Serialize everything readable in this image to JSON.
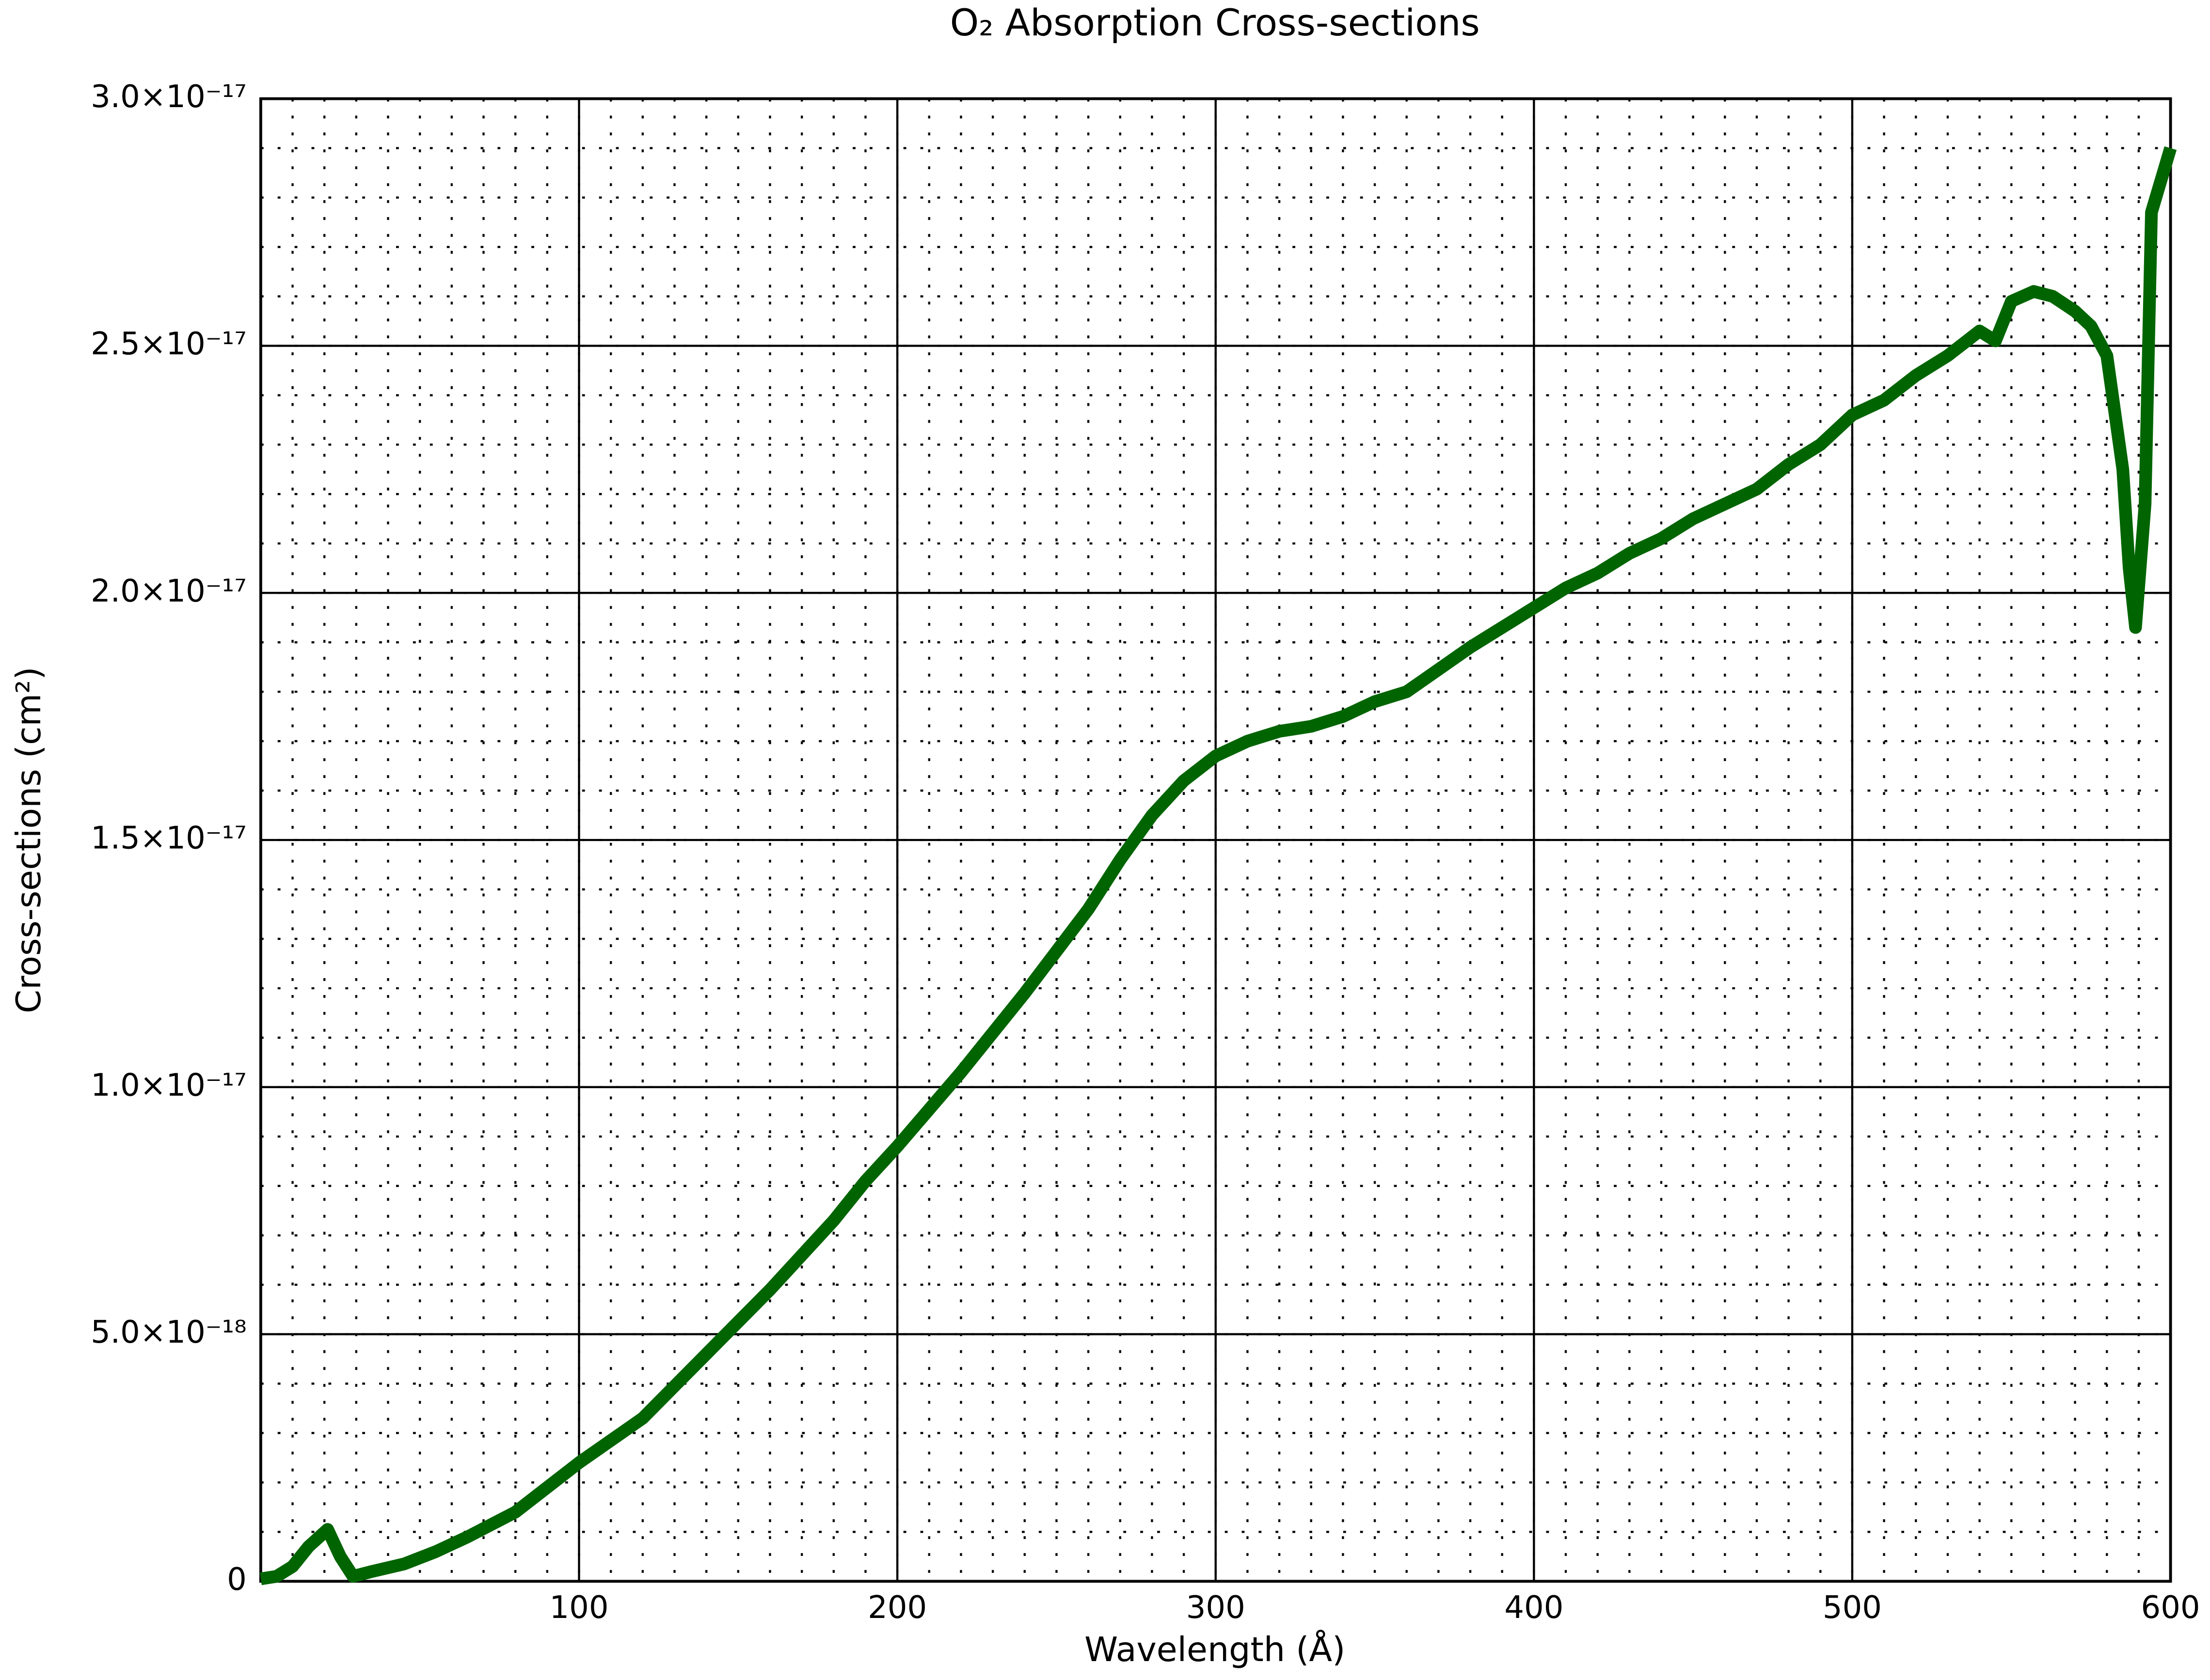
{
  "chart_data": {
    "type": "line",
    "title": "O₂ Absorption Cross-sections",
    "xlabel": "Wavelength (Å)",
    "ylabel": "Cross-sections (cm²)",
    "xlim": [
      0,
      600
    ],
    "ylim": [
      0,
      3e-17
    ],
    "xticks": [
      100,
      200,
      300,
      400,
      500,
      600
    ],
    "yticks": [
      0,
      {
        "value": 5e-18,
        "label": "5.0×10⁻¹⁸"
      },
      {
        "value": 1e-17,
        "label": "1.0×10⁻¹⁷"
      },
      {
        "value": 1.5e-17,
        "label": "1.5×10⁻¹⁷"
      },
      {
        "value": 2e-17,
        "label": "2.0×10⁻¹⁷"
      },
      {
        "value": 2.5e-17,
        "label": "2.5×10⁻¹⁷"
      },
      {
        "value": 3e-17,
        "label": "3.0×10⁻¹⁷"
      }
    ],
    "grid": true,
    "minor_grid": true,
    "x": [
      0,
      5,
      10,
      15,
      21,
      25,
      29,
      35,
      45,
      55,
      65,
      80,
      90,
      100,
      120,
      140,
      160,
      180,
      190,
      200,
      220,
      240,
      260,
      270,
      280,
      290,
      300,
      310,
      320,
      330,
      340,
      350,
      360,
      380,
      400,
      410,
      420,
      430,
      440,
      450,
      470,
      480,
      490,
      500,
      510,
      520,
      530,
      540,
      545,
      550,
      557,
      563,
      570,
      575,
      580,
      585,
      587,
      589,
      592,
      594,
      600
    ],
    "series": [
      {
        "color": "#006400",
        "values": [
          5e-20,
          1e-19,
          3e-19,
          7e-19,
          1.05e-18,
          5e-19,
          1e-19,
          2e-19,
          3.5e-19,
          6e-19,
          9e-19,
          1.4e-18,
          1.9e-18,
          2.4e-18,
          3.3e-18,
          4.6e-18,
          5.9e-18,
          7.3e-18,
          8.1e-18,
          8.8e-18,
          1.03e-17,
          1.19e-17,
          1.36e-17,
          1.46e-17,
          1.55e-17,
          1.62e-17,
          1.67e-17,
          1.7e-17,
          1.72e-17,
          1.73e-17,
          1.75e-17,
          1.78e-17,
          1.8e-17,
          1.89e-17,
          1.97e-17,
          2.01e-17,
          2.04e-17,
          2.08e-17,
          2.11e-17,
          2.15e-17,
          2.21e-17,
          2.26e-17,
          2.3e-17,
          2.36e-17,
          2.39e-17,
          2.44e-17,
          2.48e-17,
          2.53e-17,
          2.51e-17,
          2.59e-17,
          2.61e-17,
          2.6e-17,
          2.57e-17,
          2.54e-17,
          2.48e-17,
          2.25e-17,
          2.05e-17,
          1.93e-17,
          2.18e-17,
          2.77e-17,
          2.9e-17
        ]
      }
    ]
  }
}
